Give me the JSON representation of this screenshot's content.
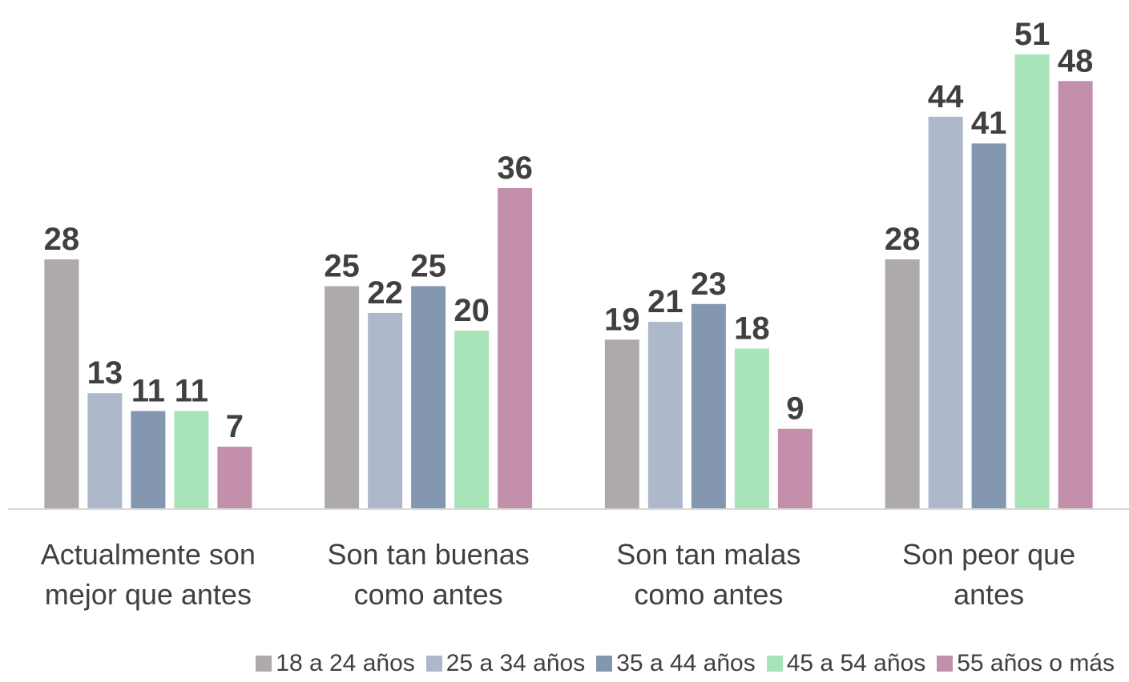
{
  "chart_data": {
    "type": "bar",
    "categories": [
      "Actualmente son mejor que antes",
      "Son tan buenas como antes",
      "Son tan malas como antes",
      "Son peor que antes"
    ],
    "series": [
      {
        "name": "18 a 24 años",
        "color": "#aeaaaa",
        "values": [
          28,
          25,
          19,
          28
        ]
      },
      {
        "name": "25 a 34 años",
        "color": "#adb9ca",
        "values": [
          13,
          22,
          21,
          44
        ]
      },
      {
        "name": "35 a 44 años",
        "color": "#8497b0",
        "values": [
          11,
          25,
          23,
          41
        ]
      },
      {
        "name": "45 a 54 años",
        "color": "#a8e4b8",
        "values": [
          11,
          20,
          18,
          51
        ]
      },
      {
        "name": "55 años o más",
        "color": "#c48faa",
        "values": [
          7,
          36,
          9,
          48
        ]
      }
    ],
    "ylim": [
      0,
      57
    ],
    "legend": "bottom"
  }
}
